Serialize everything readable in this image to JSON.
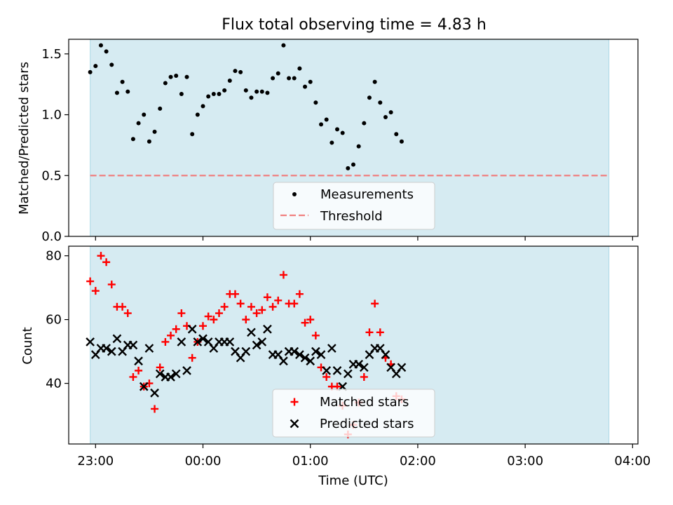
{
  "chart_data": {
    "type": "scatter",
    "title": "Flux total observing time = 4.83 h",
    "xlabel": "Time (UTC)",
    "x_ticks": [
      "23:00",
      "00:00",
      "01:00",
      "02:00",
      "03:00",
      "04:00"
    ],
    "x_tick_hours": [
      0,
      1,
      2,
      3,
      4,
      5
    ],
    "xlim_hours": [
      -0.25,
      5.05
    ],
    "observing_window_hours": [
      -0.05,
      4.78
    ],
    "sample_hours_start": -0.05,
    "sample_hours_step": 0.05,
    "colors": {
      "window_fill": "#add8e6",
      "measurement": "#000000",
      "threshold": "#f08080",
      "matched": "#ff0000",
      "predicted": "#000000"
    },
    "top_panel": {
      "ylabel": "Matched/Predicted stars",
      "ylim": [
        0,
        1.62
      ],
      "yticks": [
        "0.0",
        "0.5",
        "1.0",
        "1.5"
      ],
      "ytick_values": [
        0,
        0.5,
        1.0,
        1.5
      ],
      "threshold": 0.5,
      "legend": {
        "position": "lower center",
        "entries": [
          "Measurements",
          "Threshold"
        ]
      },
      "series": [
        {
          "name": "Measurements",
          "values": [
            1.35,
            1.4,
            1.57,
            1.52,
            1.41,
            1.18,
            1.27,
            1.19,
            0.8,
            0.93,
            1.0,
            0.78,
            0.86,
            1.05,
            1.26,
            1.31,
            1.32,
            1.17,
            1.31,
            0.84,
            1.0,
            1.07,
            1.15,
            1.17,
            1.17,
            1.2,
            1.28,
            1.36,
            1.35,
            1.2,
            1.14,
            1.19,
            1.19,
            1.18,
            1.3,
            1.34,
            1.57,
            1.3,
            1.3,
            1.38,
            1.23,
            1.27,
            1.1,
            0.92,
            0.96,
            0.77,
            0.88,
            0.85,
            0.56,
            0.59,
            0.74,
            0.93,
            1.14,
            1.27,
            1.1,
            0.98,
            1.02,
            0.84,
            0.78
          ]
        }
      ]
    },
    "bottom_panel": {
      "ylabel": "Count",
      "ylim": [
        21,
        83
      ],
      "yticks": [
        "40",
        "60",
        "80"
      ],
      "ytick_values": [
        40,
        60,
        80
      ],
      "legend": {
        "position": "lower center",
        "entries": [
          "Matched stars",
          "Predicted stars"
        ]
      },
      "series": [
        {
          "name": "Matched stars",
          "marker": "+",
          "values": [
            72,
            69,
            80,
            78,
            71,
            64,
            64,
            62,
            42,
            44,
            39,
            40,
            32,
            45,
            53,
            55,
            57,
            62,
            58,
            48,
            53,
            58,
            61,
            60,
            62,
            64,
            68,
            68,
            65,
            60,
            64,
            62,
            63,
            67,
            64,
            66,
            74,
            65,
            65,
            68,
            59,
            60,
            55,
            45,
            42,
            39,
            39,
            33,
            24,
            27,
            34,
            42,
            56,
            65,
            56,
            48,
            46,
            36,
            35
          ]
        },
        {
          "name": "Predicted stars",
          "marker": "x",
          "values": [
            53,
            49,
            51,
            51,
            50,
            54,
            50,
            52,
            52,
            47,
            39,
            51,
            37,
            43,
            42,
            42,
            43,
            53,
            44,
            57,
            53,
            54,
            53,
            51,
            53,
            53,
            53,
            50,
            48,
            50,
            56,
            52,
            53,
            57,
            49,
            49,
            47,
            50,
            50,
            49,
            48,
            47,
            50,
            49,
            44,
            51,
            44,
            39,
            43,
            46,
            46,
            45,
            49,
            51,
            51,
            49,
            45,
            43,
            45
          ]
        }
      ]
    }
  }
}
